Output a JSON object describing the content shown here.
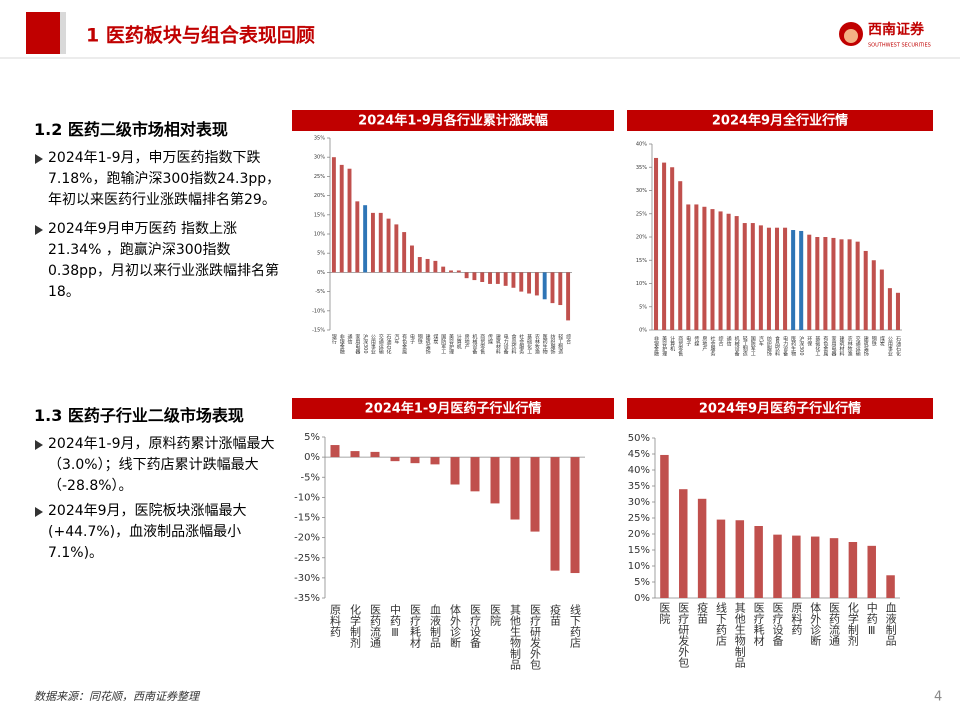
{
  "header": {
    "title": "1 医药板块与组合表现回顾",
    "logo_cn": "西南证券",
    "logo_en": "SOUTHWEST SECURITIES"
  },
  "sections": [
    {
      "heading": "1.2 医药二级市场相对表现",
      "bullets": [
        "2024年1-9月，申万医药指数下跌7.18%，跑输沪深300指数24.3pp，年初以来医药行业涨跌幅排名第29。",
        "2024年9月申万医药 指数上涨21.34% ，跑赢沪深300指数0.38pp，月初以来行业涨跌幅排名第18。"
      ]
    },
    {
      "heading": "1.3 医药子行业二级市场表现",
      "bullets": [
        "2024年1-9月，原料药累计涨幅最大（3.0%）；线下药店累计跌幅最大（-28.8%）。",
        "2024年9月，医院板块涨幅最大(+44.7%)，血液制品涨幅最小7.1%)。"
      ]
    }
  ],
  "footer": {
    "source": "数据来源：同花顺，西南证券整理",
    "page": "4"
  },
  "chart_data": [
    {
      "type": "bar",
      "title": "2024年1-9月各行业累计涨跌幅",
      "color": "#c0504d",
      "highlight": [
        "沪深300",
        "医药生物"
      ],
      "highlight_color": "#2e75b6",
      "categories": [
        "银行",
        "非银金融",
        "通信",
        "家用电器",
        "沪深300",
        "公用事业",
        "交通运输",
        "石油石化",
        "汽车",
        "有色金属",
        "电子",
        "钢铁",
        "建筑装饰",
        "煤炭",
        "国防军工",
        "美容护理",
        "计算机",
        "房地产",
        "机械设备",
        "商贸零售",
        "传媒",
        "建筑材料",
        "电力设备",
        "食品饮料",
        "社会服务",
        "基础化工",
        "农林牧渔",
        "医药生物",
        "纺织服饰",
        "轻工制造",
        "综合"
      ],
      "values": [
        30,
        28,
        27,
        18.5,
        17.5,
        15.5,
        15.5,
        14,
        12.5,
        10.5,
        7,
        4,
        3.5,
        3,
        1.5,
        0.5,
        0.5,
        -1.5,
        -2,
        -2.5,
        -3,
        -3,
        -3.5,
        -4,
        -5,
        -5.5,
        -6,
        -7,
        -8,
        -8.5,
        -12.5
      ],
      "ylim": [
        -15,
        35
      ],
      "yticks": [
        {
          "value": -15,
          "label": "-15%"
        },
        {
          "value": -10,
          "label": "-10%"
        },
        {
          "value": -5,
          "label": "-5%"
        },
        {
          "value": 0,
          "label": "0%"
        },
        {
          "value": 5,
          "label": "5%"
        },
        {
          "value": 10,
          "label": "10%"
        },
        {
          "value": 15,
          "label": "15%"
        },
        {
          "value": 20,
          "label": "20%"
        },
        {
          "value": 25,
          "label": "25%"
        },
        {
          "value": 30,
          "label": "30%"
        },
        {
          "value": 35,
          "label": "35%"
        }
      ]
    },
    {
      "type": "bar",
      "title": "2024年9月全行业行情",
      "color": "#c0504d",
      "highlight": [
        "沪深300",
        "医药生物"
      ],
      "highlight_color": "#2e75b6",
      "categories": [
        "非银金融",
        "美容护理",
        "计算机",
        "商贸零售",
        "电子",
        "传媒",
        "房地产",
        "社会服务",
        "综合",
        "通信",
        "机械设备",
        "轻工制造",
        "国防军工",
        "汽车",
        "纺织服饰",
        "食品饮料",
        "电力设备",
        "医药生物",
        "沪深300",
        "环保",
        "基础化工",
        "有色金属",
        "家用电器",
        "建筑材料",
        "农林牧渔",
        "交通运输",
        "建筑装饰",
        "钢铁",
        "煤炭",
        "公用事业",
        "石油石化"
      ],
      "values": [
        37,
        36,
        35,
        32,
        27,
        27,
        26.5,
        26,
        25.5,
        25,
        24.5,
        23,
        23,
        22.5,
        22,
        22,
        22,
        21.5,
        21.3,
        20.5,
        20,
        20,
        19.8,
        19.5,
        19.5,
        19,
        17,
        15,
        13,
        9,
        8
      ],
      "ylim": [
        0,
        40
      ],
      "yticks": [
        {
          "value": 0,
          "label": "0%"
        },
        {
          "value": 5,
          "label": "5%"
        },
        {
          "value": 10,
          "label": "10%"
        },
        {
          "value": 15,
          "label": "15%"
        },
        {
          "value": 20,
          "label": "20%"
        },
        {
          "value": 25,
          "label": "25%"
        },
        {
          "value": 30,
          "label": "30%"
        },
        {
          "value": 35,
          "label": "35%"
        },
        {
          "value": 40,
          "label": "40%"
        }
      ]
    },
    {
      "type": "bar",
      "title": "2024年1-9月医药子行业行情",
      "color": "#c0504d",
      "categories": [
        "原料药",
        "化学制剂",
        "医药流通",
        "中药Ⅲ",
        "医疗耗材",
        "血液制品",
        "体外诊断",
        "医疗设备",
        "医院",
        "其他生物制品",
        "医疗研发外包",
        "疫苗",
        "线下药店"
      ],
      "values": [
        3,
        1.5,
        1.3,
        -1,
        -1.5,
        -1.8,
        -6.8,
        -8.5,
        -11.5,
        -15.5,
        -18.5,
        -28.2,
        -28.8
      ],
      "ylim": [
        -35,
        5
      ],
      "yticks": [
        {
          "value": -35,
          "label": "-35%"
        },
        {
          "value": -30,
          "label": "-30%"
        },
        {
          "value": -25,
          "label": "-25%"
        },
        {
          "value": -20,
          "label": "-20%"
        },
        {
          "value": -15,
          "label": "-15%"
        },
        {
          "value": -10,
          "label": "-10%"
        },
        {
          "value": -5,
          "label": "-5%"
        },
        {
          "value": 0,
          "label": "0%"
        },
        {
          "value": 5,
          "label": "5%"
        }
      ]
    },
    {
      "type": "bar",
      "title": "2024年9月医药子行业行情",
      "color": "#c0504d",
      "categories": [
        "医院",
        "医疗研发外包",
        "疫苗",
        "线下药店",
        "其他生物制品",
        "医疗耗材",
        "医疗设备",
        "原料药",
        "体外诊断",
        "医药流通",
        "化学制剂",
        "中药Ⅲ",
        "血液制品"
      ],
      "values": [
        44.7,
        34,
        31,
        24.5,
        24.3,
        22.5,
        19.8,
        19.5,
        19.2,
        18.7,
        17.5,
        16.3,
        7.1
      ],
      "ylim": [
        0,
        50
      ],
      "yticks": [
        {
          "value": 0,
          "label": "0%"
        },
        {
          "value": 5,
          "label": "5%"
        },
        {
          "value": 10,
          "label": "10%"
        },
        {
          "value": 15,
          "label": "15%"
        },
        {
          "value": 20,
          "label": "20%"
        },
        {
          "value": 25,
          "label": "25%"
        },
        {
          "value": 30,
          "label": "30%"
        },
        {
          "value": 35,
          "label": "35%"
        },
        {
          "value": 40,
          "label": "40%"
        },
        {
          "value": 45,
          "label": "45%"
        },
        {
          "value": 50,
          "label": "50%"
        }
      ]
    }
  ]
}
